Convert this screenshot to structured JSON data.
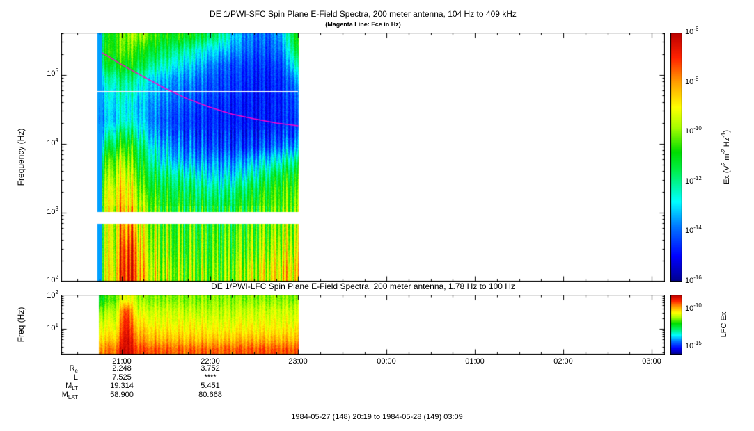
{
  "top_panel": {
    "title": "DE 1/PWI-SFC  Spin Plane E-Field Spectra, 200 meter antenna, 104 Hz to 409 kHz",
    "subtitle": "(Magenta Line: Fce in Hz)",
    "ylabel": "Frequency (Hz)",
    "yticks": [
      {
        "base": "10",
        "exp": "5"
      },
      {
        "base": "10",
        "exp": "4"
      },
      {
        "base": "10",
        "exp": "3"
      },
      {
        "base": "10",
        "exp": "2"
      }
    ],
    "colorbar": {
      "ticks": [
        {
          "base": "10",
          "exp": "-6"
        },
        {
          "base": "10",
          "exp": "-8"
        },
        {
          "base": "10",
          "exp": "-10"
        },
        {
          "base": "10",
          "exp": "-12"
        },
        {
          "base": "10",
          "exp": "-14"
        },
        {
          "base": "10",
          "exp": "-16"
        }
      ],
      "label": {
        "p0": "Ex (V",
        "s0": "2",
        "p1": " m",
        "s1": "-2",
        "p2": " Hz",
        "s2": "-1",
        "p3": ")"
      }
    }
  },
  "bottom_panel": {
    "title": "DE 1/PWI-LFC  Spin Plane E-Field Spectra, 200 meter antenna, 1.78 Hz to 100 Hz",
    "ylabel": "Freq (Hz)",
    "yticks": [
      {
        "base": "10",
        "exp": "2"
      },
      {
        "base": "10",
        "exp": "1"
      }
    ],
    "colorbar": {
      "ticks": [
        {
          "base": "10",
          "exp": "-10"
        },
        {
          "base": "10",
          "exp": "-15"
        }
      ],
      "label": "LFC Ex"
    }
  },
  "xaxis": {
    "ticks": [
      "21:00",
      "22:00",
      "23:00",
      "00:00",
      "01:00",
      "02:00",
      "03:00"
    ]
  },
  "ephemeris": {
    "rows": [
      {
        "label": {
          "main": "R",
          "sub": "e"
        },
        "col1": "2.248",
        "col2": "3.752"
      },
      {
        "label": {
          "main": "L",
          "sub": ""
        },
        "col1": "7.525",
        "col2": "****"
      },
      {
        "label": {
          "main": "M",
          "sub": "LT"
        },
        "col1": "19.314",
        "col2": "5.451"
      },
      {
        "label": {
          "main": "M",
          "sub": "LAT"
        },
        "col1": "58.900",
        "col2": "80.668"
      }
    ]
  },
  "caption": "1984-05-27 (148) 20:19 to 1984-05-28 (149) 03:09",
  "chart_data": [
    {
      "type": "heatmap",
      "title": "DE 1/PWI-SFC Spin Plane E-Field Spectra, 200 meter antenna, 104 Hz to 409 kHz",
      "subtitle": "(Magenta Line: Fce in Hz)",
      "ylabel": "Frequency (Hz)",
      "x_range_hours": [
        20.3167,
        27.15
      ],
      "x_tick_hours": [
        21,
        22,
        23,
        24,
        25,
        26,
        27
      ],
      "x_tick_labels": [
        "21:00",
        "22:00",
        "23:00",
        "00:00",
        "01:00",
        "02:00",
        "03:00"
      ],
      "y_log_range": [
        2.0,
        5.612
      ],
      "y_tick_logs": [
        2,
        3,
        4,
        5
      ],
      "data_time_range": [
        20.72,
        23.0
      ],
      "dark_lead": [
        20.72,
        20.78,
        0.25
      ],
      "stripe_amp": 1.0,
      "gap_bands_logf": [
        [
          2.84,
          3.01
        ]
      ],
      "white_lines_logf": [
        4.75
      ],
      "fce_line": {
        "color": "#ff00cc",
        "points": [
          [
            20.78,
            5.32
          ],
          [
            21.0,
            5.15
          ],
          [
            21.25,
            4.97
          ],
          [
            21.5,
            4.8
          ],
          [
            21.75,
            4.65
          ],
          [
            22.0,
            4.53
          ],
          [
            22.25,
            4.43
          ],
          [
            22.5,
            4.36
          ],
          [
            22.75,
            4.3
          ],
          [
            23.0,
            4.26
          ]
        ]
      },
      "value_scale": {
        "units": "V^2 m^-2 Hz^-1",
        "log_range": [
          -16,
          -6
        ],
        "colorbar_ticks_log": [
          -6,
          -8,
          -10,
          -12,
          -14,
          -16
        ],
        "colormap": "rainbow",
        "colormap_stops": [
          [
            0.0,
            "#00008f"
          ],
          [
            0.1,
            "#0000ff"
          ],
          [
            0.22,
            "#0077ff"
          ],
          [
            0.32,
            "#00ffff"
          ],
          [
            0.45,
            "#00ee44"
          ],
          [
            0.52,
            "#00dd00"
          ],
          [
            0.62,
            "#a8ff00"
          ],
          [
            0.7,
            "#ffff00"
          ],
          [
            0.8,
            "#ffa000"
          ],
          [
            0.9,
            "#ff2200"
          ],
          [
            1.0,
            "#bb0000"
          ]
        ]
      },
      "grid": {
        "comment": "values normalized 0-1 over log power -16..-6",
        "times": [
          20.75,
          20.85,
          20.95,
          21.05,
          21.15,
          21.25,
          21.35,
          21.45,
          21.55,
          21.65,
          21.75,
          21.85,
          21.95,
          22.05,
          22.15,
          22.25,
          22.35,
          22.45,
          22.55,
          22.65,
          22.75,
          22.85,
          22.95
        ],
        "logf": [
          5.55,
          5.35,
          5.15,
          4.95,
          4.75,
          4.55,
          4.35,
          4.15,
          3.95,
          3.75,
          3.55,
          3.35,
          3.15,
          2.7,
          2.45,
          2.15
        ],
        "values": [
          [
            0.45,
            0.5,
            0.55,
            0.6,
            0.62,
            0.6,
            0.55,
            0.52,
            0.5,
            0.52,
            0.5,
            0.48,
            0.45,
            0.42,
            0.38,
            0.3,
            0.25,
            0.22,
            0.2,
            0.2,
            0.22,
            0.3,
            0.5
          ],
          [
            0.5,
            0.52,
            0.55,
            0.58,
            0.55,
            0.5,
            0.48,
            0.45,
            0.42,
            0.4,
            0.38,
            0.35,
            0.32,
            0.3,
            0.28,
            0.25,
            0.22,
            0.2,
            0.18,
            0.18,
            0.2,
            0.25,
            0.45
          ],
          [
            0.45,
            0.48,
            0.5,
            0.52,
            0.5,
            0.45,
            0.4,
            0.38,
            0.35,
            0.32,
            0.3,
            0.28,
            0.25,
            0.22,
            0.2,
            0.18,
            0.17,
            0.16,
            0.15,
            0.15,
            0.16,
            0.2,
            0.35
          ],
          [
            0.35,
            0.38,
            0.4,
            0.42,
            0.4,
            0.35,
            0.3,
            0.28,
            0.26,
            0.25,
            0.24,
            0.22,
            0.2,
            0.18,
            0.17,
            0.16,
            0.15,
            0.14,
            0.13,
            0.13,
            0.14,
            0.16,
            0.25
          ],
          [
            0.3,
            0.32,
            0.35,
            0.36,
            0.35,
            0.3,
            0.27,
            0.25,
            0.23,
            0.22,
            0.2,
            0.19,
            0.18,
            0.17,
            0.16,
            0.15,
            0.14,
            0.13,
            0.12,
            0.12,
            0.13,
            0.15,
            0.2
          ],
          [
            0.28,
            0.3,
            0.32,
            0.33,
            0.3,
            0.27,
            0.24,
            0.22,
            0.2,
            0.19,
            0.18,
            0.17,
            0.16,
            0.15,
            0.14,
            0.13,
            0.12,
            0.12,
            0.12,
            0.12,
            0.13,
            0.14,
            0.18
          ],
          [
            0.25,
            0.28,
            0.3,
            0.35,
            0.32,
            0.28,
            0.22,
            0.2,
            0.18,
            0.17,
            0.16,
            0.15,
            0.15,
            0.14,
            0.13,
            0.13,
            0.12,
            0.12,
            0.12,
            0.12,
            0.13,
            0.14,
            0.16
          ],
          [
            0.3,
            0.35,
            0.4,
            0.45,
            0.4,
            0.32,
            0.26,
            0.22,
            0.2,
            0.18,
            0.17,
            0.16,
            0.15,
            0.15,
            0.14,
            0.14,
            0.13,
            0.13,
            0.13,
            0.14,
            0.15,
            0.16,
            0.18
          ],
          [
            0.4,
            0.45,
            0.5,
            0.55,
            0.5,
            0.4,
            0.32,
            0.28,
            0.25,
            0.22,
            0.2,
            0.19,
            0.18,
            0.17,
            0.17,
            0.16,
            0.16,
            0.16,
            0.17,
            0.18,
            0.2,
            0.22,
            0.25
          ],
          [
            0.5,
            0.55,
            0.6,
            0.62,
            0.55,
            0.45,
            0.38,
            0.33,
            0.3,
            0.28,
            0.26,
            0.25,
            0.24,
            0.24,
            0.23,
            0.23,
            0.24,
            0.26,
            0.28,
            0.3,
            0.33,
            0.36,
            0.4
          ],
          [
            0.55,
            0.6,
            0.65,
            0.68,
            0.6,
            0.5,
            0.45,
            0.42,
            0.4,
            0.38,
            0.36,
            0.34,
            0.32,
            0.3,
            0.3,
            0.3,
            0.32,
            0.35,
            0.38,
            0.42,
            0.45,
            0.48,
            0.5
          ],
          [
            0.6,
            0.65,
            0.7,
            0.72,
            0.65,
            0.55,
            0.5,
            0.48,
            0.46,
            0.45,
            0.44,
            0.42,
            0.4,
            0.38,
            0.38,
            0.4,
            0.42,
            0.45,
            0.47,
            0.5,
            0.52,
            0.54,
            0.55
          ],
          [
            0.62,
            0.68,
            0.72,
            0.75,
            0.68,
            0.6,
            0.55,
            0.52,
            0.5,
            0.5,
            0.48,
            0.47,
            0.46,
            0.45,
            0.45,
            0.46,
            0.48,
            0.5,
            0.52,
            0.54,
            0.55,
            0.56,
            0.58
          ],
          [
            0.6,
            0.65,
            0.7,
            0.85,
            0.8,
            0.65,
            0.6,
            0.58,
            0.56,
            0.55,
            0.55,
            0.54,
            0.54,
            0.53,
            0.53,
            0.54,
            0.55,
            0.56,
            0.57,
            0.58,
            0.6,
            0.62,
            0.63
          ],
          [
            0.62,
            0.66,
            0.72,
            0.92,
            0.85,
            0.68,
            0.62,
            0.6,
            0.58,
            0.57,
            0.56,
            0.56,
            0.55,
            0.55,
            0.55,
            0.56,
            0.57,
            0.58,
            0.6,
            0.62,
            0.64,
            0.66,
            0.67
          ],
          [
            0.65,
            0.68,
            0.75,
            0.95,
            0.88,
            0.72,
            0.66,
            0.64,
            0.62,
            0.6,
            0.6,
            0.59,
            0.59,
            0.58,
            0.58,
            0.6,
            0.62,
            0.64,
            0.66,
            0.68,
            0.7,
            0.72,
            0.73
          ]
        ]
      }
    },
    {
      "type": "heatmap",
      "title": "DE 1/PWI-LFC Spin Plane E-Field Spectra, 200 meter antenna, 1.78 Hz to 100 Hz",
      "ylabel": "Freq (Hz)",
      "x_range_hours": [
        20.3167,
        27.15
      ],
      "x_tick_hours": [
        21,
        22,
        23,
        24,
        25,
        26,
        27
      ],
      "y_log_range": [
        0.25,
        2.0
      ],
      "y_tick_logs": [
        1,
        2
      ],
      "data_time_range": [
        20.74,
        23.0
      ],
      "stripe_amp": 0.35,
      "value_scale": {
        "units": "LFC Ex",
        "colorbar_ticks_log": [
          -10,
          -15
        ],
        "colormap": "rainbow"
      },
      "grid": {
        "times": [
          20.75,
          20.85,
          20.95,
          21.05,
          21.15,
          21.25,
          21.35,
          21.45,
          21.55,
          21.65,
          21.75,
          21.85,
          21.95,
          22.05,
          22.15,
          22.25,
          22.35,
          22.45,
          22.55,
          22.65,
          22.75,
          22.85,
          22.95
        ],
        "logf": [
          1.85,
          1.55,
          1.25,
          0.95,
          0.65,
          0.4
        ],
        "values": [
          [
            0.5,
            0.55,
            0.6,
            0.7,
            0.65,
            0.6,
            0.6,
            0.6,
            0.6,
            0.6,
            0.6,
            0.6,
            0.6,
            0.6,
            0.6,
            0.6,
            0.6,
            0.6,
            0.6,
            0.6,
            0.6,
            0.6,
            0.6
          ],
          [
            0.6,
            0.62,
            0.65,
            0.9,
            0.7,
            0.65,
            0.65,
            0.65,
            0.65,
            0.65,
            0.64,
            0.64,
            0.64,
            0.64,
            0.64,
            0.64,
            0.64,
            0.65,
            0.65,
            0.65,
            0.65,
            0.65,
            0.65
          ],
          [
            0.65,
            0.66,
            0.68,
            0.95,
            0.75,
            0.7,
            0.68,
            0.68,
            0.68,
            0.68,
            0.68,
            0.68,
            0.67,
            0.67,
            0.67,
            0.67,
            0.68,
            0.68,
            0.68,
            0.68,
            0.68,
            0.68,
            0.68
          ],
          [
            0.7,
            0.7,
            0.72,
            0.97,
            0.8,
            0.75,
            0.73,
            0.72,
            0.72,
            0.72,
            0.72,
            0.72,
            0.72,
            0.71,
            0.71,
            0.71,
            0.72,
            0.72,
            0.72,
            0.72,
            0.72,
            0.72,
            0.72
          ],
          [
            0.75,
            0.76,
            0.78,
            1.0,
            0.85,
            0.8,
            0.78,
            0.78,
            0.78,
            0.78,
            0.77,
            0.77,
            0.77,
            0.77,
            0.77,
            0.77,
            0.78,
            0.78,
            0.78,
            0.78,
            0.78,
            0.78,
            0.78
          ],
          [
            0.82,
            0.83,
            0.85,
            1.0,
            0.9,
            0.87,
            0.86,
            0.86,
            0.85,
            0.85,
            0.85,
            0.85,
            0.85,
            0.85,
            0.85,
            0.85,
            0.86,
            0.86,
            0.86,
            0.86,
            0.86,
            0.86,
            0.86
          ]
        ]
      }
    }
  ]
}
